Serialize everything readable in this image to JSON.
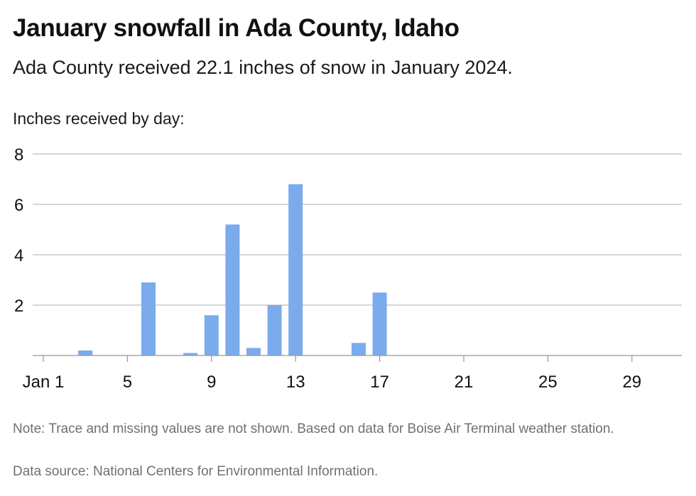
{
  "header": {
    "title": "January snowfall in Ada County, Idaho",
    "subtitle": "Ada County received 22.1 inches of snow in January 2024.",
    "axis_caption": "Inches received by day:"
  },
  "footer": {
    "note": "Note: Trace and missing values are not shown. Based on data for Boise Air Terminal weather station.",
    "source": "Data source: National Centers for Environmental Information."
  },
  "colors": {
    "bar": "#7aabec",
    "grid": "#bdbdbd",
    "axis": "#999999",
    "text": "#111111"
  },
  "chart_data": {
    "type": "bar",
    "title": "January snowfall in Ada County, Idaho",
    "ylabel": "Inches received by day:",
    "xlim": [
      1,
      31
    ],
    "ylim": [
      0,
      8
    ],
    "yticks": [
      2,
      4,
      6,
      8
    ],
    "xticks": [
      {
        "day": 1,
        "label": "Jan 1"
      },
      {
        "day": 5,
        "label": "5"
      },
      {
        "day": 9,
        "label": "9"
      },
      {
        "day": 13,
        "label": "13"
      },
      {
        "day": 17,
        "label": "17"
      },
      {
        "day": 21,
        "label": "21"
      },
      {
        "day": 25,
        "label": "25"
      },
      {
        "day": 29,
        "label": "29"
      }
    ],
    "grid": true,
    "x": [
      3,
      6,
      8,
      9,
      10,
      11,
      12,
      13,
      16,
      17
    ],
    "values": [
      0.2,
      2.9,
      0.1,
      1.6,
      5.2,
      0.3,
      2.0,
      6.8,
      0.5,
      2.5
    ]
  }
}
